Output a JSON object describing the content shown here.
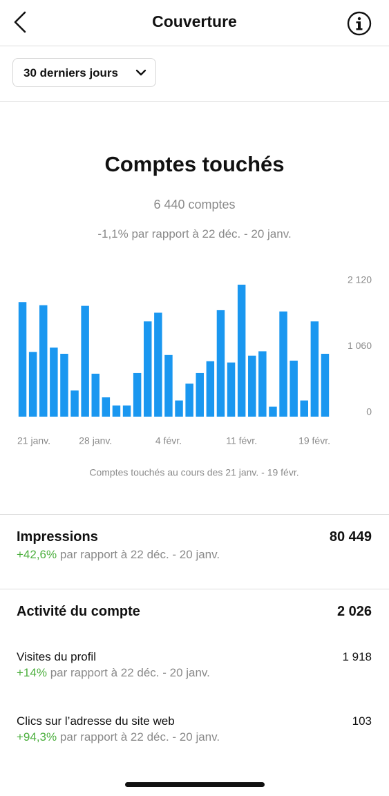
{
  "header": {
    "title": "Couverture"
  },
  "filter": {
    "label": "30 derniers jours"
  },
  "summary": {
    "title": "Comptes touchés",
    "total": "6 440 comptes",
    "comparison": "-1,1% par rapport à 22 déc. - 20 janv."
  },
  "chart_data": {
    "type": "bar",
    "categories": [
      "21 janv.",
      null,
      null,
      null,
      null,
      null,
      null,
      "28 janv.",
      null,
      null,
      null,
      null,
      null,
      null,
      "4 févr.",
      null,
      null,
      null,
      null,
      null,
      null,
      "11 févr.",
      null,
      null,
      null,
      null,
      null,
      null,
      null,
      "19 févr."
    ],
    "values": [
      1840,
      1040,
      1790,
      1110,
      1010,
      420,
      1780,
      690,
      310,
      180,
      180,
      700,
      1530,
      1670,
      990,
      260,
      530,
      700,
      890,
      1710,
      870,
      2120,
      980,
      1050,
      160,
      1690,
      900,
      260,
      1530,
      1010
    ],
    "color": "#1a97f0",
    "ylim": [
      0,
      2120
    ],
    "yticks": [
      0,
      {
        "value": 1060,
        "label": "1 060"
      },
      {
        "value": 2120,
        "label": "2 120"
      }
    ],
    "caption": "Comptes touchés au cours des 21 janv. - 19 févr."
  },
  "impressions": {
    "label": "Impressions",
    "value": "80 449",
    "change": "+42,6%",
    "comparison": "par rapport à 22 déc. - 20 janv."
  },
  "activity": {
    "label": "Activité du compte",
    "value": "2 026",
    "items": [
      {
        "label": "Visites du profil",
        "value": "1 918",
        "change": "+14%",
        "comparison": "par rapport à 22 déc. - 20 janv."
      },
      {
        "label": "Clics sur l’adresse du site web",
        "value": "103",
        "change": "+94,3%",
        "comparison": "par rapport à 22 déc. - 20 janv."
      }
    ]
  }
}
